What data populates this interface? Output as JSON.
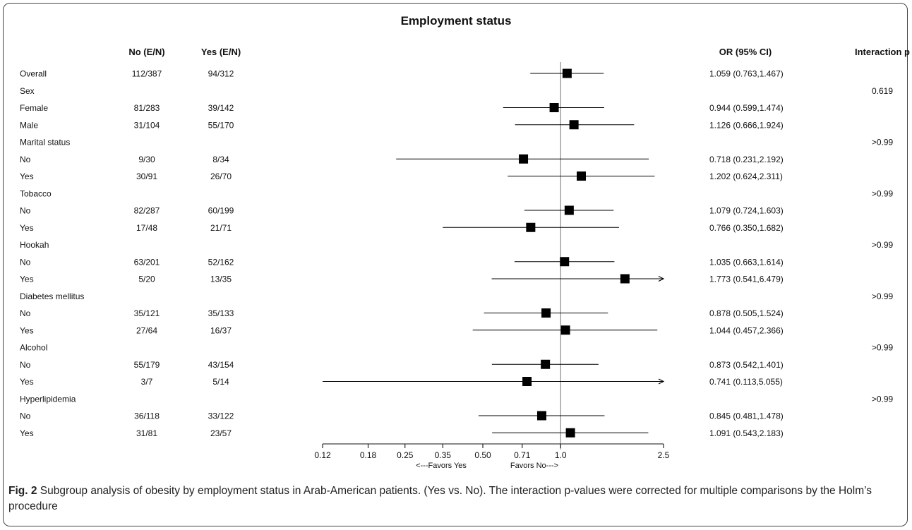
{
  "chart_data": {
    "type": "forest",
    "title": "Employment status",
    "columns": {
      "no": "No (E/N)",
      "yes": "Yes (E/N)",
      "or": "OR (95% CI)",
      "p": "Interaction p"
    },
    "rows": [
      {
        "label": "Overall",
        "header": false,
        "no": "112/387",
        "yes": "94/312",
        "or": 1.059,
        "lo": 0.763,
        "hi": 1.467,
        "or_text": "1.059 (0.763,1.467)",
        "p": ""
      },
      {
        "label": "Sex",
        "header": true,
        "p": "0.619"
      },
      {
        "label": "Female",
        "header": false,
        "no": "81/283",
        "yes": "39/142",
        "or": 0.944,
        "lo": 0.599,
        "hi": 1.474,
        "or_text": "0.944 (0.599,1.474)",
        "p": ""
      },
      {
        "label": "Male",
        "header": false,
        "no": "31/104",
        "yes": "55/170",
        "or": 1.126,
        "lo": 0.666,
        "hi": 1.924,
        "or_text": "1.126 (0.666,1.924)",
        "p": ""
      },
      {
        "label": "Marital status",
        "header": true,
        "p": ">0.99"
      },
      {
        "label": "No",
        "header": false,
        "no": "9/30",
        "yes": "8/34",
        "or": 0.718,
        "lo": 0.231,
        "hi": 2.192,
        "or_text": "0.718 (0.231,2.192)",
        "p": ""
      },
      {
        "label": "Yes",
        "header": false,
        "no": "30/91",
        "yes": "26/70",
        "or": 1.202,
        "lo": 0.624,
        "hi": 2.311,
        "or_text": "1.202 (0.624,2.311)",
        "p": ""
      },
      {
        "label": "Tobacco",
        "header": true,
        "p": ">0.99"
      },
      {
        "label": "No",
        "header": false,
        "no": "82/287",
        "yes": "60/199",
        "or": 1.079,
        "lo": 0.724,
        "hi": 1.603,
        "or_text": "1.079 (0.724,1.603)",
        "p": ""
      },
      {
        "label": "Yes",
        "header": false,
        "no": "17/48",
        "yes": "21/71",
        "or": 0.766,
        "lo": 0.35,
        "hi": 1.682,
        "or_text": "0.766 (0.350,1.682)",
        "p": ""
      },
      {
        "label": "Hookah",
        "header": true,
        "p": ">0.99"
      },
      {
        "label": "No",
        "header": false,
        "no": "63/201",
        "yes": "52/162",
        "or": 1.035,
        "lo": 0.663,
        "hi": 1.614,
        "or_text": "1.035 (0.663,1.614)",
        "p": ""
      },
      {
        "label": "Yes",
        "header": false,
        "no": "5/20",
        "yes": "13/35",
        "or": 1.773,
        "lo": 0.541,
        "hi": 6.479,
        "or_text": "1.773 (0.541,6.479)",
        "p": ""
      },
      {
        "label": "Diabetes mellitus",
        "header": true,
        "p": ">0.99"
      },
      {
        "label": "No",
        "header": false,
        "no": "35/121",
        "yes": "35/133",
        "or": 0.878,
        "lo": 0.505,
        "hi": 1.524,
        "or_text": "0.878 (0.505,1.524)",
        "p": ""
      },
      {
        "label": "Yes",
        "header": false,
        "no": "27/64",
        "yes": "16/37",
        "or": 1.044,
        "lo": 0.457,
        "hi": 2.366,
        "or_text": "1.044 (0.457,2.366)",
        "p": ""
      },
      {
        "label": "Alcohol",
        "header": true,
        "p": ">0.99"
      },
      {
        "label": "No",
        "header": false,
        "no": "55/179",
        "yes": "43/154",
        "or": 0.873,
        "lo": 0.542,
        "hi": 1.401,
        "or_text": "0.873 (0.542,1.401)",
        "p": ""
      },
      {
        "label": "Yes",
        "header": false,
        "no": "3/7",
        "yes": "5/14",
        "or": 0.741,
        "lo": 0.113,
        "hi": 5.055,
        "or_text": "0.741 (0.113,5.055)",
        "p": ""
      },
      {
        "label": "Hyperlipidemia",
        "header": true,
        "p": ">0.99"
      },
      {
        "label": "No",
        "header": false,
        "no": "36/118",
        "yes": "33/122",
        "or": 0.845,
        "lo": 0.481,
        "hi": 1.478,
        "or_text": "0.845 (0.481,1.478)",
        "p": ""
      },
      {
        "label": "Yes",
        "header": false,
        "no": "31/81",
        "yes": "23/57",
        "or": 1.091,
        "lo": 0.543,
        "hi": 2.183,
        "or_text": "1.091 (0.543,2.183)",
        "p": ""
      }
    ],
    "x_scale": "log",
    "xlim": [
      0.12,
      2.5
    ],
    "reference_line": 1.0,
    "x_ticks": [
      0.12,
      0.18,
      0.25,
      0.35,
      0.5,
      0.71,
      1.0,
      2.5
    ],
    "x_tick_labels": [
      "0.12",
      "0.18",
      "0.25",
      "0.35",
      "0.50",
      "0.71",
      "1.0",
      "2.5"
    ],
    "favors_left": "<---Favors Yes",
    "favors_right": "Favors No--->"
  },
  "caption": {
    "label": "Fig. 2",
    "text": " Subgroup analysis of obesity by employment status in Arab-American patients. (Yes vs. No). The interaction p-values were corrected for multiple comparisons by the Holm’s procedure"
  },
  "colors": {
    "marker": "#000000",
    "line": "#000000",
    "reference": "#888888",
    "frame": "#444444"
  }
}
